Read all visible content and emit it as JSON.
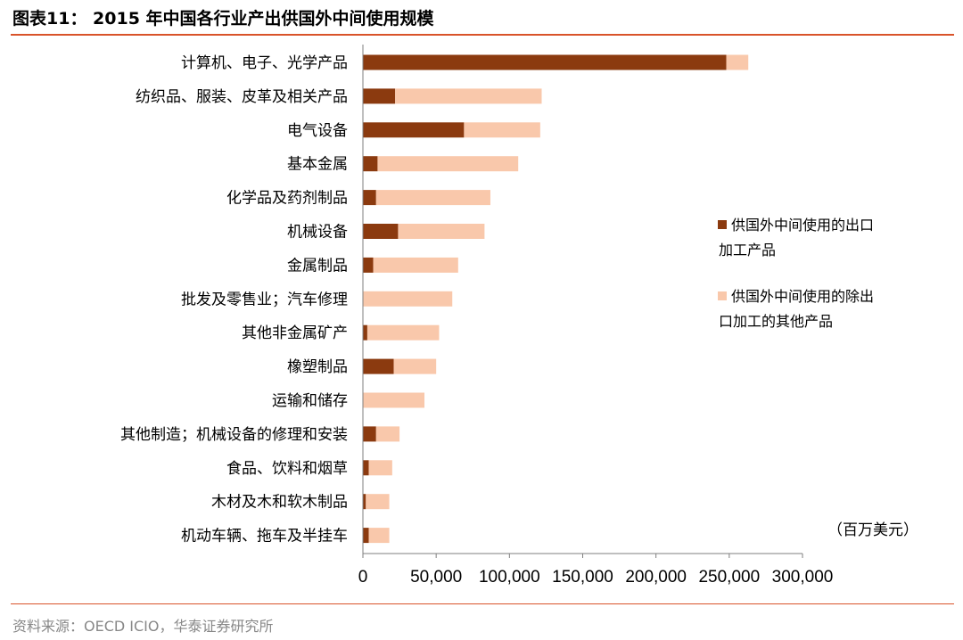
{
  "header": {
    "title": "图表11： 2015 年中国各行业产出供国外中间使用规模"
  },
  "footer": {
    "source": "资料来源：OECD ICIO，华泰证券研究所"
  },
  "colors": {
    "accent_rule": "#d9532a",
    "series_export_processing": "#8b3a0f",
    "series_other": "#f9c8ab"
  },
  "chart_data": {
    "type": "bar",
    "orientation": "horizontal",
    "stacked": true,
    "unit_label": "（百万美元）",
    "categories": [
      "计算机、电子、光学产品",
      "纺织品、服装、皮革及相关产品",
      "电气设备",
      "基本金属",
      "化学品及药剂制品",
      "机械设备",
      "金属制品",
      "批发及零售业；汽车修理",
      "其他非金属矿产",
      "橡塑制品",
      "运输和储存",
      "其他制造；机械设备的修理和安装",
      "食品、饮料和烟草",
      "木材及木和软木制品",
      "机动车辆、拖车及半挂车"
    ],
    "series": [
      {
        "name_lines": [
          "供国外中间使用的出口",
          "加工产品"
        ],
        "values": [
          248000,
          22000,
          69000,
          10000,
          9000,
          24000,
          7000,
          0,
          3000,
          21000,
          0,
          9000,
          4000,
          2000,
          4000
        ]
      },
      {
        "name_lines": [
          "供国外中间使用的除出",
          "口加工的其他产品"
        ],
        "values": [
          15000,
          100000,
          52000,
          96000,
          78000,
          59000,
          58000,
          61000,
          49000,
          29000,
          42000,
          16000,
          16000,
          16000,
          14000
        ]
      }
    ],
    "xlim": [
      0,
      300000
    ],
    "x_ticks": [
      0,
      50000,
      100000,
      150000,
      200000,
      250000,
      300000
    ],
    "x_tick_labels": [
      "0",
      "50,000",
      "100,000",
      "150,000",
      "200,000",
      "250,000",
      "300,000"
    ],
    "legend_position": "right",
    "grid": false
  }
}
